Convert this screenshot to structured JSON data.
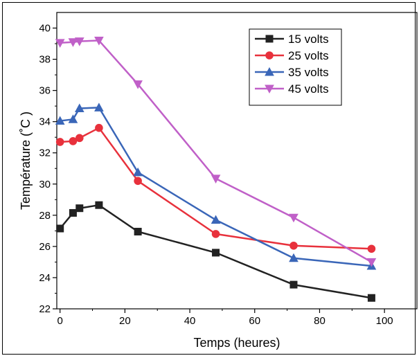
{
  "chart_data": {
    "type": "line",
    "xlabel": "Temps (heures)",
    "ylabel": "Température (˚C )",
    "xlim": [
      -1,
      110
    ],
    "ylim": [
      22,
      41
    ],
    "xticks": [
      0,
      20,
      40,
      60,
      80,
      100
    ],
    "yticks": [
      22,
      24,
      26,
      28,
      30,
      32,
      34,
      36,
      38,
      40
    ],
    "legend_position": "top-right",
    "grid": false,
    "series": [
      {
        "name": "15 volts",
        "color": "#222222",
        "marker": "square",
        "x": [
          0,
          4,
          6,
          12,
          24,
          48,
          72,
          96
        ],
        "y": [
          27.15,
          28.15,
          28.45,
          28.65,
          26.95,
          25.6,
          23.55,
          22.7
        ]
      },
      {
        "name": "25 volts",
        "color": "#e8313c",
        "marker": "circle",
        "x": [
          0,
          4,
          6,
          12,
          24,
          48,
          72,
          96
        ],
        "y": [
          32.7,
          32.75,
          32.95,
          33.6,
          30.2,
          26.8,
          26.05,
          25.85
        ]
      },
      {
        "name": "35 volts",
        "color": "#3a66b8",
        "marker": "triangle-up",
        "x": [
          0,
          4,
          6,
          12,
          24,
          48,
          72,
          96
        ],
        "y": [
          34.05,
          34.15,
          34.85,
          34.9,
          30.75,
          27.7,
          25.25,
          24.75
        ]
      },
      {
        "name": "45 volts",
        "color": "#c060c8",
        "marker": "triangle-down",
        "x": [
          0,
          4,
          6,
          12,
          24,
          48,
          72,
          96
        ],
        "y": [
          39.05,
          39.1,
          39.15,
          39.2,
          36.4,
          30.35,
          27.85,
          25.0
        ]
      }
    ]
  }
}
